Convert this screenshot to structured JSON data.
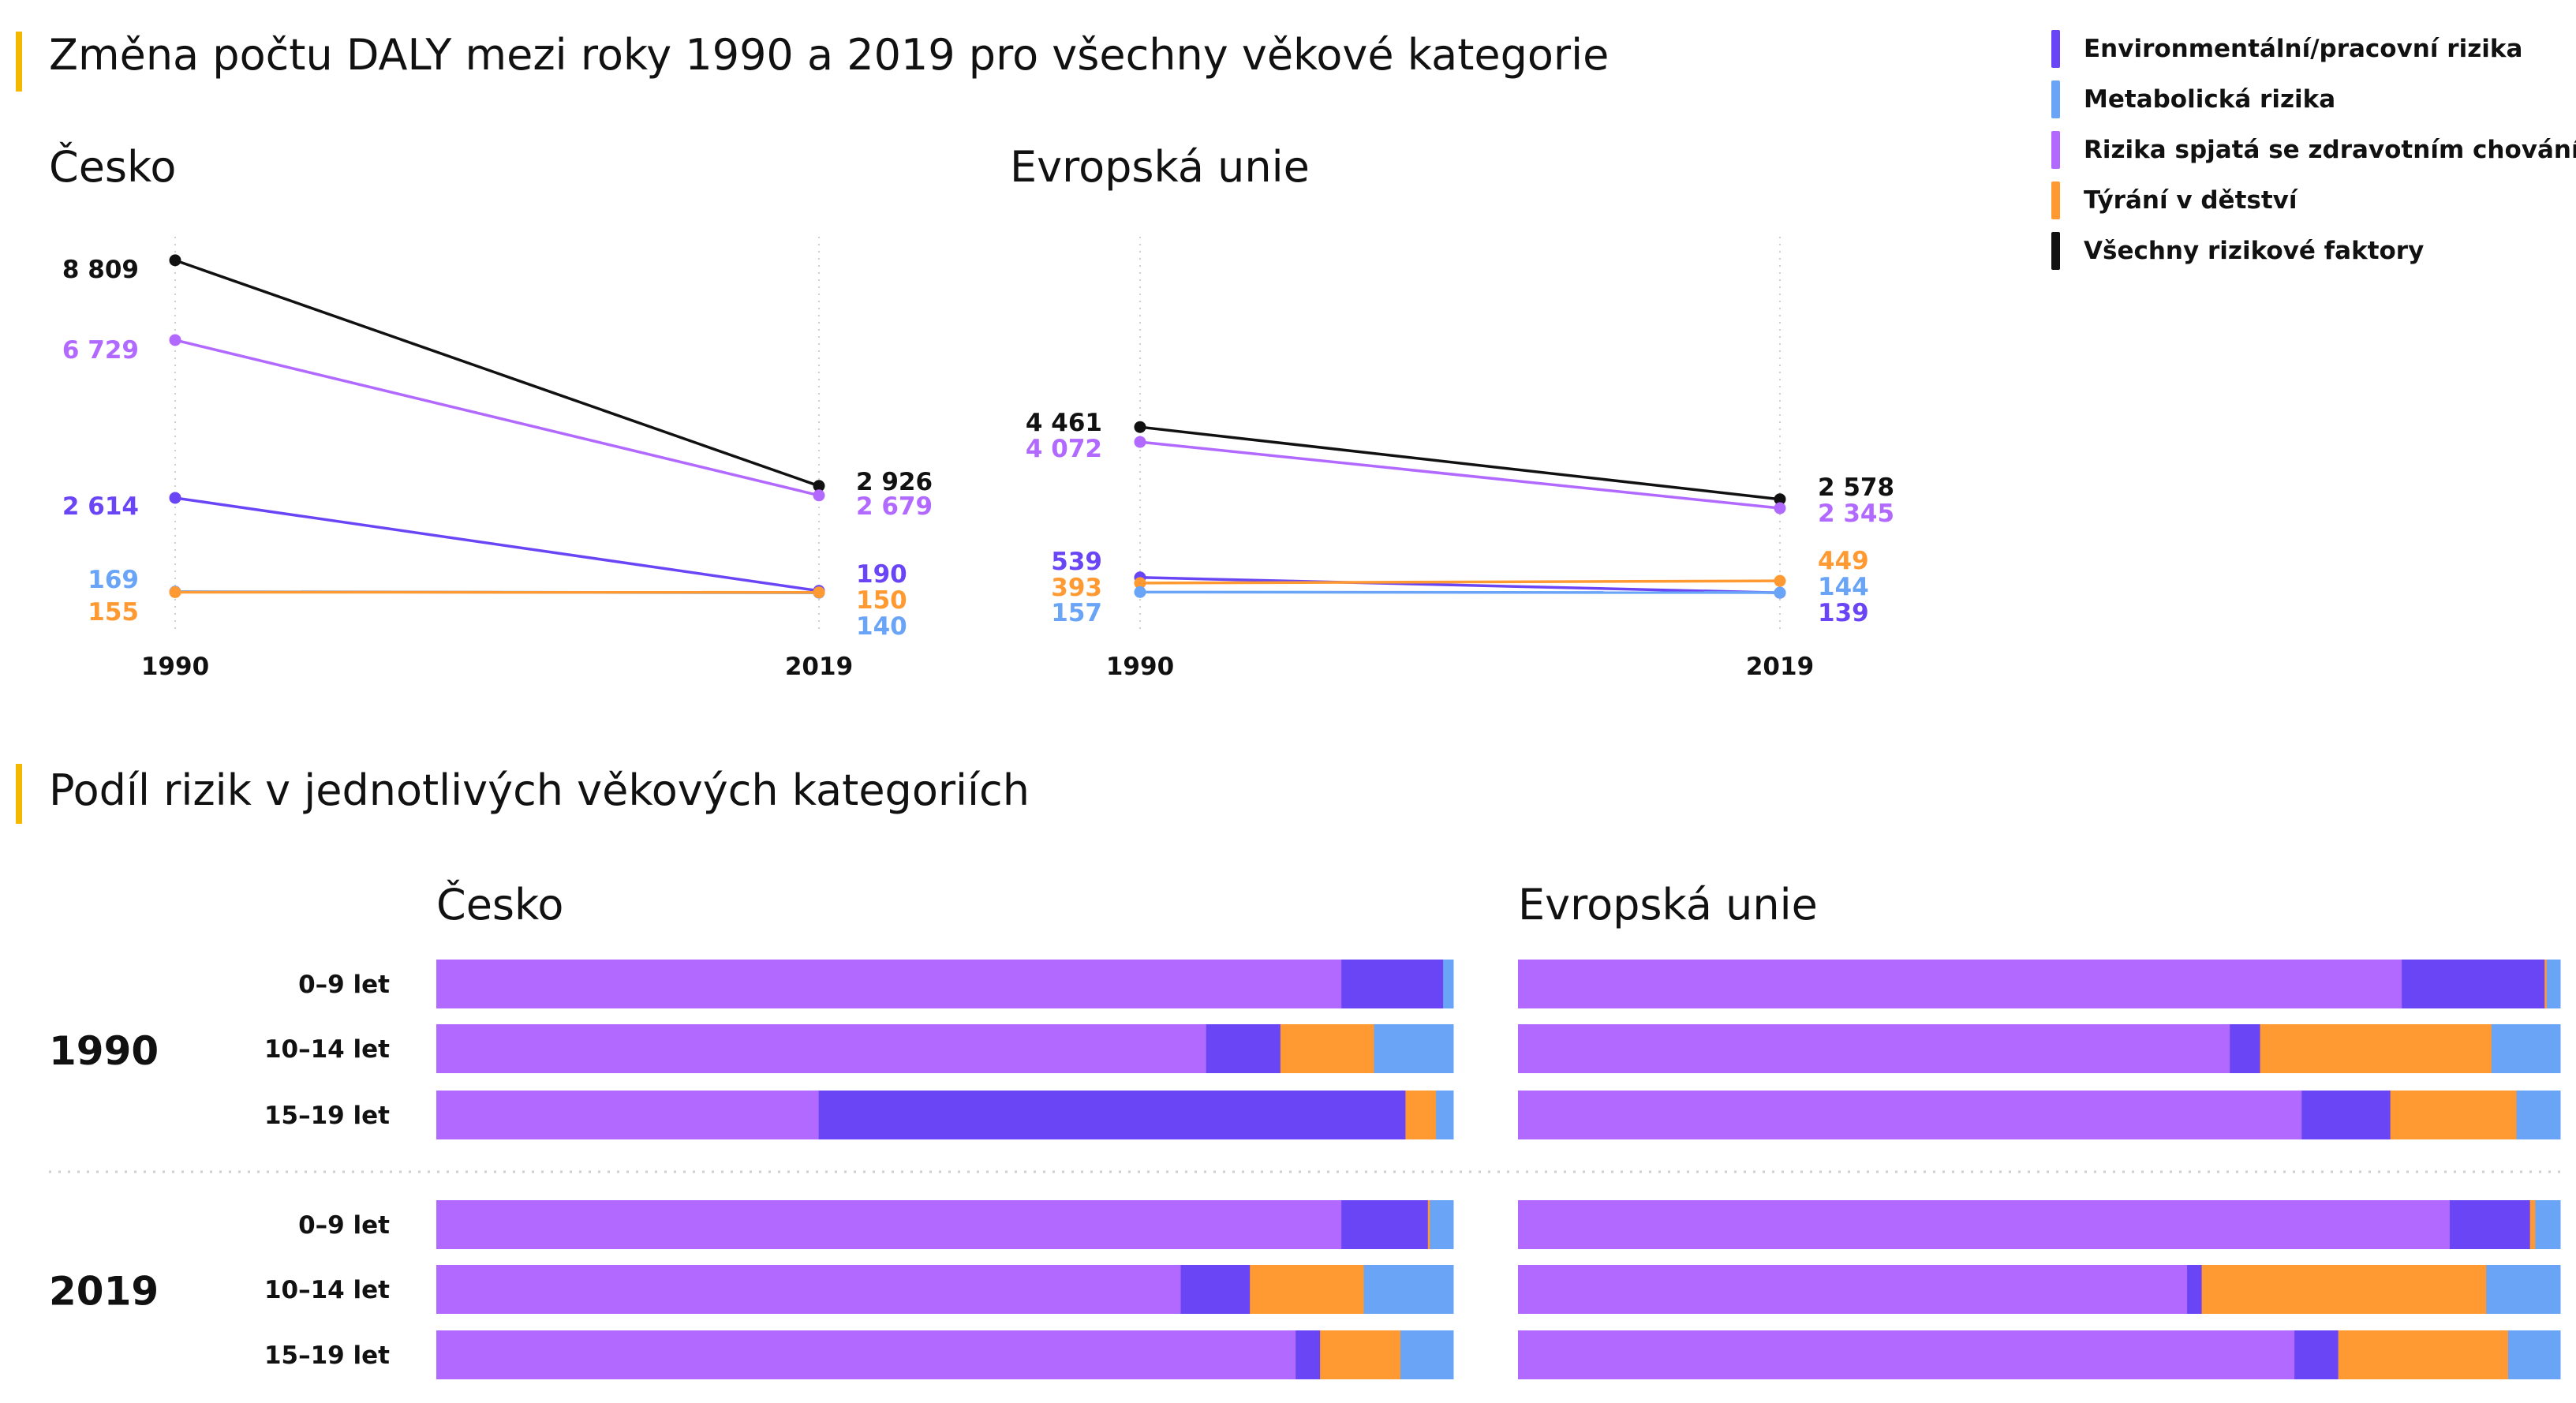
{
  "title1": "Změna počtu DALY mezi roky 1990 a 2019 pro všechny věkové kategorie",
  "title2": "Podíl rizik v jednotlivých věkových kategoriích",
  "colors": {
    "env": "#6a45f5",
    "meta": "#6aa4f7",
    "behav": "#b169ff",
    "abuse": "#ff9a33",
    "all": "#111111",
    "accent": "#f5b800"
  },
  "legend": [
    {
      "key": "env",
      "label": "Environmentální/pracovní rizika"
    },
    {
      "key": "meta",
      "label": "Metabolická rizika"
    },
    {
      "key": "behav",
      "label": "Rizika spjatá se zdravotním chováním"
    },
    {
      "key": "abuse",
      "label": "Týrání v dětství"
    },
    {
      "key": "all",
      "label": "Všechny rizikové faktory"
    }
  ],
  "chart_data": [
    {
      "type": "line",
      "title": "Česko",
      "x": [
        "1990",
        "2019"
      ],
      "series": [
        {
          "key": "all",
          "name": "Všechny rizikové faktory",
          "values": [
            8809,
            2926
          ],
          "labels": [
            "8 809",
            "2 926"
          ]
        },
        {
          "key": "behav",
          "name": "Rizika spjatá se zdravotním chováním",
          "values": [
            6729,
            2679
          ],
          "labels": [
            "6 729",
            "2 679"
          ]
        },
        {
          "key": "env",
          "name": "Environmentální/pracovní rizika",
          "values": [
            2614,
            190
          ],
          "labels": [
            "2 614",
            "190"
          ]
        },
        {
          "key": "meta",
          "name": "Metabolická rizika",
          "values": [
            169,
            140
          ],
          "labels": [
            "169",
            "140"
          ]
        },
        {
          "key": "abuse",
          "name": "Týrání v dětství",
          "values": [
            155,
            150
          ],
          "labels": [
            "155",
            "150"
          ]
        }
      ]
    },
    {
      "type": "line",
      "title": "Evropská unie",
      "x": [
        "1990",
        "2019"
      ],
      "series": [
        {
          "key": "all",
          "name": "Všechny rizikové faktory",
          "values": [
            4461,
            2578
          ],
          "labels": [
            "4 461",
            "2 578"
          ]
        },
        {
          "key": "behav",
          "name": "Rizika spjatá se zdravotním chováním",
          "values": [
            4072,
            2345
          ],
          "labels": [
            "4 072",
            "2 345"
          ]
        },
        {
          "key": "env",
          "name": "Environmentální/pracovní rizika",
          "values": [
            539,
            139
          ],
          "labels": [
            "539",
            "139"
          ]
        },
        {
          "key": "abuse",
          "name": "Týrání v dětství",
          "values": [
            393,
            449
          ],
          "labels": [
            "393",
            "449"
          ]
        },
        {
          "key": "meta",
          "name": "Metabolická rizika",
          "values": [
            157,
            144
          ],
          "labels": [
            "157",
            "144"
          ]
        }
      ]
    },
    {
      "type": "bar",
      "stacked": true,
      "orientation": "horizontal",
      "title": "Česko",
      "series_order": [
        "behav",
        "env",
        "abuse",
        "meta"
      ],
      "groups": [
        {
          "year": "1990",
          "rows": [
            {
              "label": "0–9 let",
              "shares": {
                "behav": 0.89,
                "env": 0.1,
                "abuse": 0.0,
                "meta": 0.01
              }
            },
            {
              "label": "10–14 let",
              "shares": {
                "behav": 0.757,
                "env": 0.073,
                "abuse": 0.092,
                "meta": 0.078
              }
            },
            {
              "label": "15–19 let",
              "shares": {
                "behav": 0.376,
                "env": 0.577,
                "abuse": 0.03,
                "meta": 0.017
              }
            }
          ]
        },
        {
          "year": "2019",
          "rows": [
            {
              "label": "0–9 let",
              "shares": {
                "behav": 0.89,
                "env": 0.085,
                "abuse": 0.002,
                "meta": 0.023
              }
            },
            {
              "label": "10–14 let",
              "shares": {
                "behav": 0.732,
                "env": 0.068,
                "abuse": 0.112,
                "meta": 0.088
              }
            },
            {
              "label": "15–19 let",
              "shares": {
                "behav": 0.845,
                "env": 0.024,
                "abuse": 0.079,
                "meta": 0.052
              }
            }
          ]
        }
      ]
    },
    {
      "type": "bar",
      "stacked": true,
      "orientation": "horizontal",
      "title": "Evropská unie",
      "series_order": [
        "behav",
        "env",
        "abuse",
        "meta"
      ],
      "groups": [
        {
          "year": "1990",
          "rows": [
            {
              "label": "0–9 let",
              "shares": {
                "behav": 0.848,
                "env": 0.137,
                "abuse": 0.002,
                "meta": 0.013
              }
            },
            {
              "label": "10–14 let",
              "shares": {
                "behav": 0.683,
                "env": 0.029,
                "abuse": 0.222,
                "meta": 0.066
              }
            },
            {
              "label": "15–19 let",
              "shares": {
                "behav": 0.752,
                "env": 0.085,
                "abuse": 0.121,
                "meta": 0.042
              }
            }
          ]
        },
        {
          "year": "2019",
          "rows": [
            {
              "label": "0–9 let",
              "shares": {
                "behav": 0.894,
                "env": 0.077,
                "abuse": 0.005,
                "meta": 0.024
              }
            },
            {
              "label": "10–14 let",
              "shares": {
                "behav": 0.642,
                "env": 0.014,
                "abuse": 0.273,
                "meta": 0.071
              }
            },
            {
              "label": "15–19 let",
              "shares": {
                "behav": 0.745,
                "env": 0.042,
                "abuse": 0.163,
                "meta": 0.05
              }
            }
          ]
        }
      ]
    }
  ]
}
